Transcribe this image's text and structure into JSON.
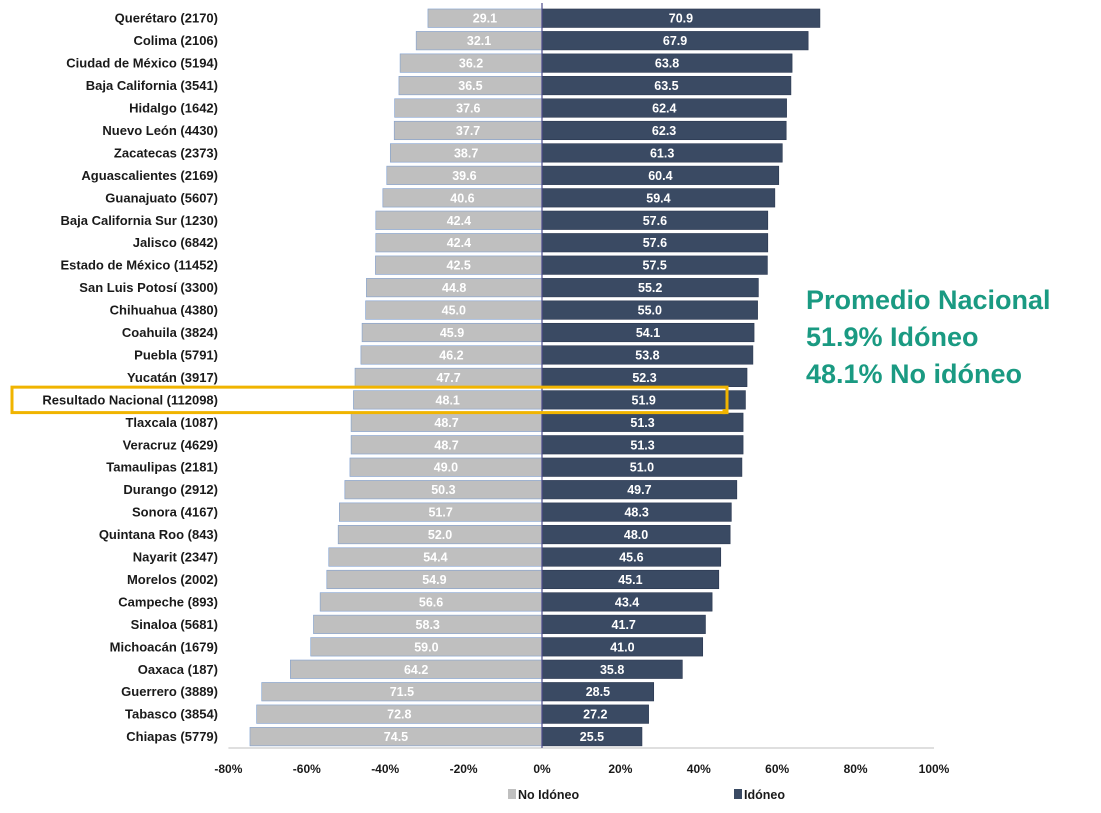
{
  "chart_data": {
    "type": "bar",
    "orientation": "horizontal-diverging",
    "categories": [
      "Querétaro (2170)",
      "Colima (2106)",
      "Ciudad de México (5194)",
      "Baja California (3541)",
      "Hidalgo (1642)",
      "Nuevo León (4430)",
      "Zacatecas (2373)",
      "Aguascalientes (2169)",
      "Guanajuato (5607)",
      "Baja California Sur (1230)",
      "Jalisco (6842)",
      "Estado de México (11452)",
      "San Luis Potosí (3300)",
      "Chihuahua (4380)",
      "Coahuila (3824)",
      "Puebla (5791)",
      "Yucatán (3917)",
      "Resultado Nacional (112098)",
      "Tlaxcala (1087)",
      "Veracruz (4629)",
      "Tamaulipas (2181)",
      "Durango (2912)",
      "Sonora (4167)",
      "Quintana Roo (843)",
      "Nayarit (2347)",
      "Morelos (2002)",
      "Campeche (893)",
      "Sinaloa (5681)",
      "Michoacán (1679)",
      "Oaxaca (187)",
      "Guerrero (3889)",
      "Tabasco (3854)",
      "Chiapas (5779)"
    ],
    "series": [
      {
        "name": "No Idóneo",
        "color": "#bfbfbf",
        "values": [
          29.1,
          32.1,
          36.2,
          36.5,
          37.6,
          37.7,
          38.7,
          39.6,
          40.6,
          42.4,
          42.4,
          42.5,
          44.8,
          45.0,
          45.9,
          46.2,
          47.7,
          48.1,
          48.7,
          48.7,
          49.0,
          50.3,
          51.7,
          52.0,
          54.4,
          54.9,
          56.6,
          58.3,
          59.0,
          64.2,
          71.5,
          72.8,
          74.5
        ],
        "labels": [
          "29.1",
          "32.1",
          "36.2",
          "36.5",
          "37.6",
          "37.7",
          "38.7",
          "39.6",
          "40.6",
          "42.4",
          "42.4",
          "42.5",
          "44.8",
          "45.0",
          "45.9",
          "46.2",
          "47.7",
          "48.1",
          "48.7",
          "48.7",
          "49.0",
          "50.3",
          "51.7",
          "52.0",
          "54.4",
          "54.9",
          "56.6",
          "58.3",
          "59.0",
          "64.2",
          "71.5",
          "72.8",
          "74.5"
        ]
      },
      {
        "name": "Idóneo",
        "color": "#3a4a63",
        "values": [
          70.9,
          67.9,
          63.8,
          63.5,
          62.4,
          62.3,
          61.3,
          60.4,
          59.4,
          57.6,
          57.6,
          57.5,
          55.2,
          55.0,
          54.1,
          53.8,
          52.3,
          51.9,
          51.3,
          51.3,
          51.0,
          49.7,
          48.3,
          48.0,
          45.6,
          45.1,
          43.4,
          41.7,
          41.0,
          35.8,
          28.5,
          27.2,
          25.5
        ],
        "labels": [
          "70.9",
          "67.9",
          "63.8",
          "63.5",
          "62.4",
          "62.3",
          "61.3",
          "60.4",
          "59.4",
          "57.6",
          "57.6",
          "57.5",
          "55.2",
          "55.0",
          "54.1",
          "53.8",
          "52.3",
          "51.9",
          "51.3",
          "51.3",
          "51.0",
          "49.7",
          "48.3",
          "48.0",
          "45.6",
          "45.1",
          "43.4",
          "41.7",
          "41.0",
          "35.8",
          "28.5",
          "27.2",
          "25.5"
        ]
      }
    ],
    "xlim": [
      -80,
      100
    ],
    "xticks": [
      "-80%",
      "-60%",
      "-40%",
      "-20%",
      "0%",
      "20%",
      "40%",
      "60%",
      "80%",
      "100%"
    ],
    "xtick_values": [
      -80,
      -60,
      -40,
      -20,
      0,
      20,
      40,
      60,
      80,
      100
    ],
    "legend_position": "bottom",
    "highlighted_category": "Resultado Nacional (112098)",
    "highlight_color": "#f0b400",
    "annotation": {
      "lines": [
        "Promedio Nacional",
        "51.9% Idóneo",
        "48.1% No idóneo"
      ],
      "color": "#1a9a82"
    }
  }
}
